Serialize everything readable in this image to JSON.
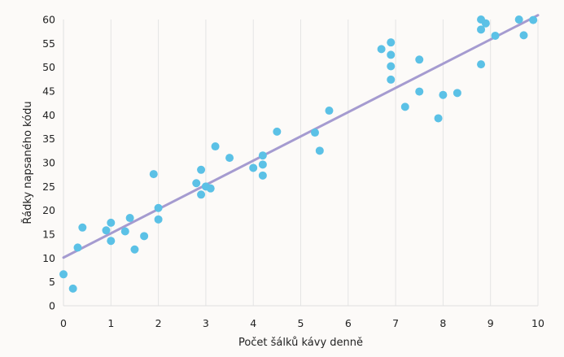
{
  "chart_data": {
    "type": "scatter",
    "xlabel": "Počet šálků kávy denně",
    "ylabel": "Řádky napsaného kódu",
    "xlim": [
      0,
      10
    ],
    "ylim": [
      0,
      60
    ],
    "x_ticks": [
      0,
      1,
      2,
      3,
      4,
      5,
      6,
      7,
      8,
      9,
      10
    ],
    "y_ticks": [
      0,
      5,
      10,
      15,
      20,
      25,
      30,
      35,
      40,
      45,
      50,
      55,
      60
    ],
    "grid": "vertical",
    "series": [
      {
        "type": "scatter",
        "color": "#5bc1e6",
        "points": [
          [
            0.0,
            6.6
          ],
          [
            0.2,
            3.6
          ],
          [
            0.3,
            12.2
          ],
          [
            0.4,
            16.4
          ],
          [
            0.9,
            15.8
          ],
          [
            1.0,
            13.6
          ],
          [
            1.0,
            17.4
          ],
          [
            1.3,
            15.6
          ],
          [
            1.4,
            18.4
          ],
          [
            1.5,
            11.8
          ],
          [
            1.7,
            14.6
          ],
          [
            1.9,
            27.6
          ],
          [
            2.0,
            20.5
          ],
          [
            2.0,
            18.1
          ],
          [
            2.8,
            25.7
          ],
          [
            2.9,
            23.3
          ],
          [
            2.9,
            28.5
          ],
          [
            3.0,
            25.0
          ],
          [
            3.1,
            24.6
          ],
          [
            3.2,
            33.4
          ],
          [
            3.5,
            31.0
          ],
          [
            4.0,
            28.9
          ],
          [
            4.2,
            31.5
          ],
          [
            4.2,
            29.6
          ],
          [
            4.2,
            27.3
          ],
          [
            4.5,
            36.5
          ],
          [
            5.3,
            36.3
          ],
          [
            5.4,
            32.5
          ],
          [
            5.6,
            40.9
          ],
          [
            6.7,
            53.8
          ],
          [
            6.9,
            55.2
          ],
          [
            6.9,
            52.6
          ],
          [
            6.9,
            50.2
          ],
          [
            6.9,
            47.4
          ],
          [
            7.2,
            41.7
          ],
          [
            7.5,
            51.6
          ],
          [
            7.5,
            44.9
          ],
          [
            7.9,
            39.3
          ],
          [
            8.0,
            44.2
          ],
          [
            8.3,
            44.6
          ],
          [
            8.8,
            60.0
          ],
          [
            8.8,
            57.9
          ],
          [
            8.8,
            50.6
          ],
          [
            8.9,
            59.2
          ],
          [
            9.1,
            56.6
          ],
          [
            9.6,
            60.0
          ],
          [
            9.7,
            56.7
          ],
          [
            9.9,
            59.9
          ]
        ]
      },
      {
        "type": "line",
        "color": "#a59bd0",
        "x": [
          0,
          10
        ],
        "y": [
          10.1,
          60.9
        ]
      }
    ]
  }
}
